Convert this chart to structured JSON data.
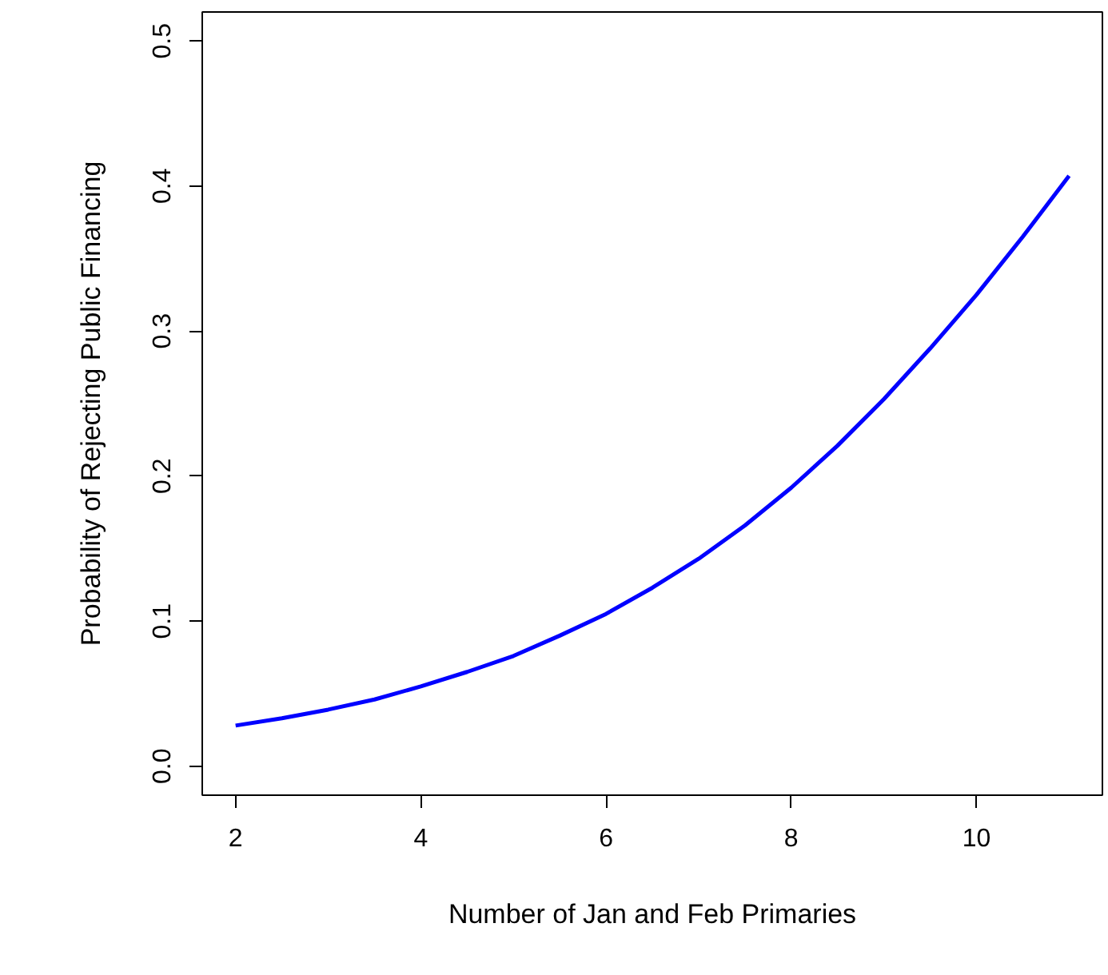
{
  "chart_data": {
    "type": "line",
    "xlabel": "Number of Jan and Feb Primaries",
    "ylabel": "Probability of Rejecting Public Financing",
    "x": [
      2,
      2.5,
      3,
      3.5,
      4,
      4.5,
      5,
      5.5,
      6,
      6.5,
      7,
      7.5,
      8,
      8.5,
      9,
      9.5,
      10,
      10.5,
      11
    ],
    "series": [
      {
        "color": "#0000ff",
        "values": [
          0.028,
          0.033,
          0.039,
          0.046,
          0.055,
          0.065,
          0.076,
          0.09,
          0.105,
          0.123,
          0.143,
          0.166,
          0.192,
          0.221,
          0.253,
          0.288,
          0.325,
          0.365,
          0.407
        ]
      }
    ],
    "xlim": [
      1.64,
      11.36
    ],
    "ylim": [
      -0.02,
      0.52
    ],
    "xticks": [
      2,
      4,
      6,
      8,
      10
    ],
    "yticks": [
      {
        "value": 0,
        "label": "0.0"
      },
      0.1,
      0.2,
      0.3,
      0.4,
      0.5
    ],
    "grid": false,
    "line_style": "solid"
  }
}
